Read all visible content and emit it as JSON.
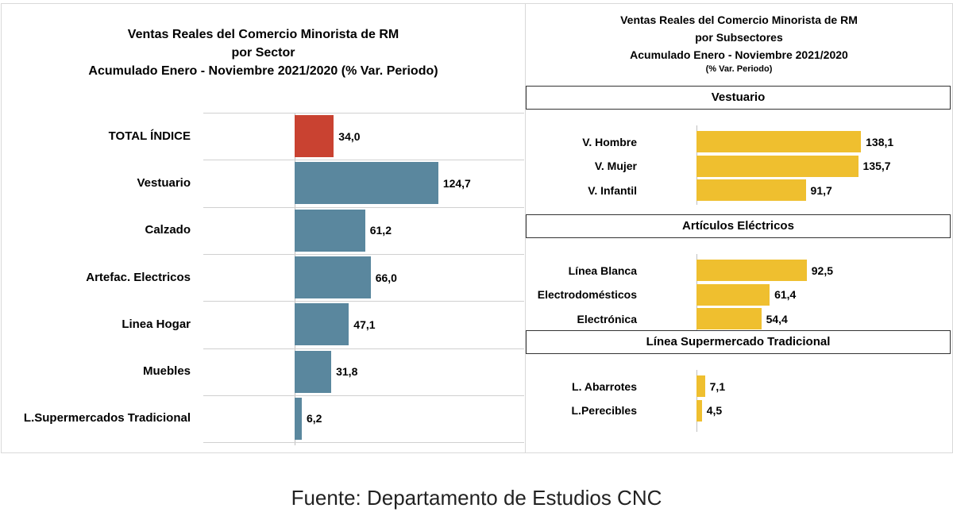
{
  "left": {
    "title_lines": [
      "Ventas Reales del Comercio Minorista de RM",
      "por Sector",
      "Acumulado Enero - Noviembre 2021/2020 (% Var. Periodo)"
    ]
  },
  "right": {
    "title_lines": [
      "Ventas Reales del Comercio Minorista de RM",
      "por Subsectores",
      "Acumulado Enero - Noviembre 2021/2020",
      "(% Var. Periodo)"
    ]
  },
  "footer": "Fuente: Departamento de Estudios CNC",
  "colors": {
    "total": "#c94231",
    "sector": "#5a879e",
    "subsector": "#efbf2f"
  },
  "chart_data": [
    {
      "type": "bar",
      "orientation": "horizontal",
      "categories": [
        "TOTAL ÍNDICE",
        "Vestuario",
        "Calzado",
        "Artefac. Electricos",
        "Linea Hogar",
        "Muebles",
        "L.Supermercados Tradicional"
      ],
      "values": [
        34.0,
        124.7,
        61.2,
        66.0,
        47.1,
        31.8,
        6.2
      ],
      "labels": [
        "34,0",
        "124,7",
        "61,2",
        "66,0",
        "47,1",
        "31,8",
        "6,2"
      ],
      "xlim": [
        0,
        200
      ]
    },
    {
      "type": "bar",
      "orientation": "horizontal",
      "groups": [
        {
          "name": "Vestuario",
          "categories": [
            "V. Hombre",
            "V. Mujer",
            "V. Infantil"
          ],
          "values": [
            138.1,
            135.7,
            91.7
          ],
          "labels": [
            "138,1",
            "135,7",
            "91,7"
          ]
        },
        {
          "name": "Artículos Eléctricos",
          "categories": [
            "Línea Blanca",
            "Electrodomésticos",
            "Electrónica"
          ],
          "values": [
            92.5,
            61.4,
            54.4
          ],
          "labels": [
            "92,5",
            "61,4",
            "54,4"
          ]
        },
        {
          "name": "Línea  Supermercado Tradicional",
          "categories": [
            "L. Abarrotes",
            "L.Perecibles"
          ],
          "values": [
            7.1,
            4.5
          ],
          "labels": [
            "7,1",
            "4,5"
          ]
        }
      ],
      "xlim": [
        0,
        200
      ]
    }
  ]
}
